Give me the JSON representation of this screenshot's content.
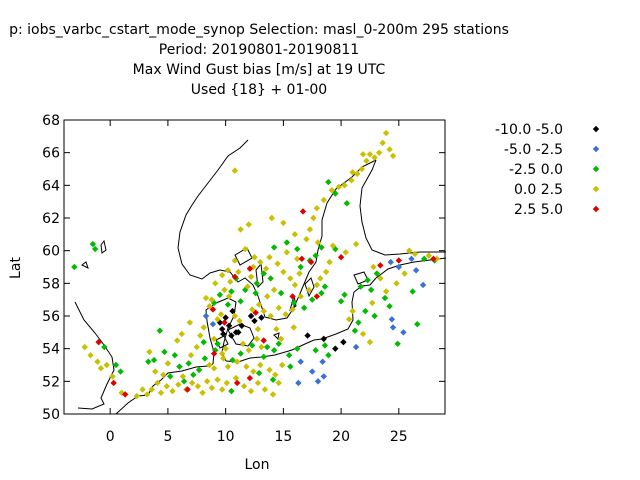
{
  "title_lines": [
    "p: iobs_varbc_cstart_mode_synop   Selection: masl_0-200m    295 stations",
    "Period: 20190801-20190811",
    "Max Wind Gust bias [m/s] at  19 UTC",
    "Used {18} + 01-00"
  ],
  "chart_data": {
    "type": "scatter",
    "xlabel": "Lon",
    "ylabel": "Lat",
    "xlim": [
      -4,
      29
    ],
    "ylim": [
      50,
      68
    ],
    "xticks": [
      0,
      5,
      10,
      15,
      20,
      25
    ],
    "yticks": [
      50,
      52,
      54,
      56,
      58,
      60,
      62,
      64,
      66,
      68
    ],
    "grid": false,
    "legend_position": "right",
    "series": [
      {
        "name": "-10.0 -5.0",
        "color": "#000000",
        "points": [
          [
            9.7,
            55.2
          ],
          [
            10.3,
            55.4
          ],
          [
            10.9,
            55.0
          ],
          [
            10.0,
            55.9
          ],
          [
            9.8,
            54.9
          ],
          [
            11.4,
            55.4
          ],
          [
            10.5,
            54.8
          ],
          [
            12.5,
            55.7
          ],
          [
            12.2,
            56.0
          ],
          [
            13.1,
            55.9
          ],
          [
            10.6,
            56.3
          ],
          [
            9.5,
            55.6
          ],
          [
            17.1,
            54.8
          ],
          [
            18.5,
            54.6
          ],
          [
            19.5,
            54.0
          ],
          [
            20.2,
            54.4
          ],
          [
            11.1,
            55.0
          ]
        ]
      },
      {
        "name": "-5.0 -2.5",
        "color": "#3b6fd8",
        "points": [
          [
            8.3,
            56.0
          ],
          [
            8.9,
            55.5
          ],
          [
            16.5,
            53.2
          ],
          [
            16.3,
            51.9
          ],
          [
            17.5,
            52.6
          ],
          [
            18.0,
            52.0
          ],
          [
            18.5,
            52.3
          ],
          [
            18.4,
            53.2
          ],
          [
            21.3,
            54.1
          ],
          [
            24.4,
            55.8
          ],
          [
            24.5,
            55.3
          ],
          [
            25.4,
            55.0
          ],
          [
            24.3,
            59.3
          ],
          [
            26.1,
            59.5
          ],
          [
            26.5,
            58.8
          ],
          [
            27.1,
            57.9
          ],
          [
            25.0,
            59.0
          ]
        ]
      },
      {
        "name": "-2.5 0.0",
        "color": "#00bb00",
        "points": [
          [
            -3.1,
            59.0
          ],
          [
            -1.5,
            60.4
          ],
          [
            -1.3,
            60.1
          ],
          [
            -0.5,
            54.1
          ],
          [
            0.5,
            53.0
          ],
          [
            0.9,
            52.6
          ],
          [
            3.3,
            53.2
          ],
          [
            3.8,
            53.3
          ],
          [
            4.7,
            53.8
          ],
          [
            4.3,
            55.1
          ],
          [
            5.2,
            52.3
          ],
          [
            5.6,
            53.6
          ],
          [
            6.0,
            52.9
          ],
          [
            6.4,
            52.0
          ],
          [
            6.8,
            53.1
          ],
          [
            7.2,
            52.4
          ],
          [
            7.7,
            52.7
          ],
          [
            8.2,
            53.4
          ],
          [
            8.1,
            54.4
          ],
          [
            9.1,
            53.9
          ],
          [
            9.3,
            54.3
          ],
          [
            10.6,
            53.3
          ],
          [
            11.3,
            53.7
          ],
          [
            12.3,
            54.2
          ],
          [
            13.3,
            53.5
          ],
          [
            13.6,
            54.1
          ],
          [
            14.2,
            53.9
          ],
          [
            14.6,
            54.3
          ],
          [
            15.5,
            53.6
          ],
          [
            16.2,
            54.0
          ],
          [
            17.8,
            53.9
          ],
          [
            18.6,
            54.2
          ],
          [
            18.9,
            53.6
          ],
          [
            10.5,
            51.4
          ],
          [
            12.9,
            52.5
          ],
          [
            14.1,
            52.1
          ],
          [
            15.6,
            52.9
          ],
          [
            9.0,
            56.8
          ],
          [
            9.5,
            57.3
          ],
          [
            10.2,
            56.7
          ],
          [
            10.5,
            57.5
          ],
          [
            11.7,
            57.6
          ],
          [
            12.6,
            57.4
          ],
          [
            13.3,
            58.6
          ],
          [
            13.9,
            58.3
          ],
          [
            14.8,
            57.4
          ],
          [
            15.9,
            56.8
          ],
          [
            16.8,
            56.5
          ],
          [
            17.5,
            57.0
          ],
          [
            18.3,
            57.4
          ],
          [
            18.6,
            57.8
          ],
          [
            16.5,
            59.0
          ],
          [
            17.3,
            59.4
          ],
          [
            17.8,
            59.7
          ],
          [
            18.3,
            60.2
          ],
          [
            16.2,
            60.1
          ],
          [
            15.3,
            60.5
          ],
          [
            14.2,
            60.2
          ],
          [
            19.5,
            60.1
          ],
          [
            21.7,
            57.8
          ],
          [
            22.3,
            58.2
          ],
          [
            23.1,
            58.6
          ],
          [
            22.6,
            57.6
          ],
          [
            23.8,
            57.1
          ],
          [
            24.2,
            56.6
          ],
          [
            22.9,
            56.0
          ],
          [
            21.5,
            55.6
          ],
          [
            22.1,
            56.3
          ],
          [
            21.2,
            55.1
          ],
          [
            24.9,
            54.3
          ],
          [
            26.6,
            55.5
          ],
          [
            26.2,
            57.5
          ],
          [
            27.2,
            59.5
          ],
          [
            28.1,
            59.4
          ],
          [
            20.5,
            62.9
          ],
          [
            19.5,
            63.5
          ],
          [
            18.9,
            64.2
          ],
          [
            20.0,
            56.9
          ],
          [
            20.3,
            57.3
          ],
          [
            10.9,
            58.3
          ],
          [
            12.7,
            58.0
          ],
          [
            11.3,
            56.9
          ]
        ]
      },
      {
        "name": "0.0 2.5",
        "color": "#c8c000",
        "points": [
          [
            -2.2,
            54.1
          ],
          [
            -1.7,
            53.6
          ],
          [
            -1.1,
            53.2
          ],
          [
            -0.8,
            52.8
          ],
          [
            -0.3,
            53.0
          ],
          [
            0.2,
            52.3
          ],
          [
            1.0,
            51.3
          ],
          [
            2.3,
            51.1
          ],
          [
            2.8,
            51.5
          ],
          [
            3.2,
            51.2
          ],
          [
            3.6,
            51.5
          ],
          [
            4.1,
            51.9
          ],
          [
            4.4,
            51.3
          ],
          [
            4.9,
            51.7
          ],
          [
            5.4,
            51.4
          ],
          [
            5.9,
            51.8
          ],
          [
            6.3,
            52.3
          ],
          [
            6.6,
            51.5
          ],
          [
            7.1,
            51.9
          ],
          [
            7.6,
            51.7
          ],
          [
            8.0,
            51.3
          ],
          [
            8.4,
            52.0
          ],
          [
            8.8,
            51.6
          ],
          [
            9.3,
            52.1
          ],
          [
            9.7,
            51.5
          ],
          [
            10.1,
            51.9
          ],
          [
            10.9,
            52.2
          ],
          [
            11.6,
            51.7
          ],
          [
            12.2,
            51.4
          ],
          [
            12.8,
            51.9
          ],
          [
            13.4,
            51.5
          ],
          [
            14.1,
            51.2
          ],
          [
            14.6,
            51.9
          ],
          [
            3.4,
            53.8
          ],
          [
            3.9,
            52.6
          ],
          [
            4.6,
            52.4
          ],
          [
            5.0,
            53.1
          ],
          [
            5.8,
            54.5
          ],
          [
            6.2,
            54.9
          ],
          [
            7.0,
            53.6
          ],
          [
            7.5,
            54.1
          ],
          [
            8.6,
            53.0
          ],
          [
            9.0,
            52.8
          ],
          [
            9.8,
            53.4
          ],
          [
            10.2,
            52.9
          ],
          [
            11.0,
            53.2
          ],
          [
            11.8,
            52.9
          ],
          [
            12.4,
            52.6
          ],
          [
            13.0,
            53.0
          ],
          [
            13.8,
            52.7
          ],
          [
            14.3,
            52.4
          ],
          [
            14.9,
            53.0
          ],
          [
            11.5,
            54.3
          ],
          [
            12.0,
            53.9
          ],
          [
            12.7,
            54.6
          ],
          [
            13.1,
            54.1
          ],
          [
            9.3,
            55.8
          ],
          [
            9.6,
            56.1
          ],
          [
            8.6,
            56.6
          ],
          [
            8.3,
            57.1
          ],
          [
            8.8,
            57.0
          ],
          [
            9.9,
            57.6
          ],
          [
            10.3,
            57.2
          ],
          [
            9.1,
            58.0
          ],
          [
            10.4,
            58.1
          ],
          [
            11.9,
            57.8
          ],
          [
            12.2,
            58.4
          ],
          [
            12.4,
            59.0
          ],
          [
            13.0,
            59.3
          ],
          [
            13.5,
            58.9
          ],
          [
            13.8,
            59.6
          ],
          [
            14.5,
            59.2
          ],
          [
            15.0,
            58.7
          ],
          [
            15.6,
            58.3
          ],
          [
            16.0,
            57.9
          ],
          [
            16.4,
            58.6
          ],
          [
            14.2,
            57.6
          ],
          [
            13.6,
            57.2
          ],
          [
            12.9,
            56.7
          ],
          [
            12.3,
            56.4
          ],
          [
            13.3,
            56.3
          ],
          [
            13.9,
            56.0
          ],
          [
            14.6,
            56.5
          ],
          [
            15.2,
            56.1
          ],
          [
            15.8,
            56.4
          ],
          [
            16.5,
            57.2
          ],
          [
            17.2,
            57.6
          ],
          [
            17.9,
            57.9
          ],
          [
            18.2,
            58.3
          ],
          [
            18.7,
            58.7
          ],
          [
            19.0,
            59.3
          ],
          [
            18.0,
            60.5
          ],
          [
            17.0,
            60.7
          ],
          [
            16.0,
            61.0
          ],
          [
            15.0,
            61.7
          ],
          [
            14.0,
            62.0
          ],
          [
            17.3,
            61.3
          ],
          [
            17.6,
            62.0
          ],
          [
            17.9,
            62.6
          ],
          [
            18.5,
            63.1
          ],
          [
            19.2,
            63.7
          ],
          [
            19.8,
            63.9
          ],
          [
            20.3,
            64.0
          ],
          [
            20.9,
            64.3
          ],
          [
            21.4,
            64.7
          ],
          [
            21.8,
            65.0
          ],
          [
            22.2,
            65.5
          ],
          [
            22.5,
            65.9
          ],
          [
            22.9,
            65.7
          ],
          [
            23.3,
            66.0
          ],
          [
            23.6,
            66.6
          ],
          [
            23.9,
            67.2
          ],
          [
            24.2,
            66.2
          ],
          [
            24.5,
            65.8
          ],
          [
            21.9,
            65.9
          ],
          [
            21.0,
            64.8
          ],
          [
            10.8,
            64.9
          ],
          [
            11.3,
            61.3
          ],
          [
            12.0,
            61.6
          ],
          [
            12.5,
            59.6
          ],
          [
            11.7,
            60.1
          ],
          [
            10.8,
            59.4
          ],
          [
            10.2,
            58.8
          ],
          [
            9.7,
            58.5
          ],
          [
            11.1,
            58.7
          ],
          [
            15.3,
            59.9
          ],
          [
            16.2,
            59.5
          ],
          [
            19.3,
            60.3
          ],
          [
            20.4,
            59.9
          ],
          [
            21.3,
            60.4
          ],
          [
            22.8,
            59.0
          ],
          [
            23.4,
            58.3
          ],
          [
            24.8,
            58.0
          ],
          [
            25.5,
            58.6
          ],
          [
            26.4,
            59.8
          ],
          [
            25.9,
            60.0
          ],
          [
            27.6,
            59.7
          ],
          [
            28.3,
            59.5
          ],
          [
            23.9,
            57.5
          ],
          [
            22.7,
            56.8
          ],
          [
            21.0,
            56.3
          ],
          [
            20.7,
            55.8
          ],
          [
            21.9,
            54.9
          ],
          [
            22.5,
            54.4
          ],
          [
            14.4,
            55.2
          ],
          [
            14.8,
            54.6
          ],
          [
            10.0,
            54.0
          ],
          [
            9.7,
            53.7
          ],
          [
            6.9,
            55.6
          ],
          [
            8.1,
            55.3
          ],
          [
            7.8,
            54.8
          ],
          [
            9.0,
            54.6
          ],
          [
            10.8,
            56.0
          ],
          [
            11.2,
            55.7
          ],
          [
            12.8,
            55.2
          ],
          [
            15.9,
            55.3
          ]
        ]
      },
      {
        "name": "2.5 5.0",
        "color": "#e00000",
        "points": [
          [
            -1.0,
            54.4
          ],
          [
            0.3,
            51.9
          ],
          [
            1.3,
            51.2
          ],
          [
            6.7,
            51.5
          ],
          [
            8.9,
            56.4
          ],
          [
            9.9,
            55.6
          ],
          [
            11.0,
            51.9
          ],
          [
            12.1,
            52.2
          ],
          [
            10.8,
            58.4
          ],
          [
            12.1,
            58.9
          ],
          [
            12.6,
            56.2
          ],
          [
            13.3,
            54.5
          ],
          [
            15.8,
            57.2
          ],
          [
            16.6,
            59.5
          ],
          [
            17.4,
            59.3
          ],
          [
            16.7,
            62.4
          ],
          [
            17.9,
            57.2
          ],
          [
            20.0,
            59.6
          ],
          [
            23.4,
            59.1
          ],
          [
            25.0,
            59.4
          ],
          [
            28.0,
            59.5
          ],
          [
            9.0,
            53.7
          ]
        ]
      }
    ]
  }
}
